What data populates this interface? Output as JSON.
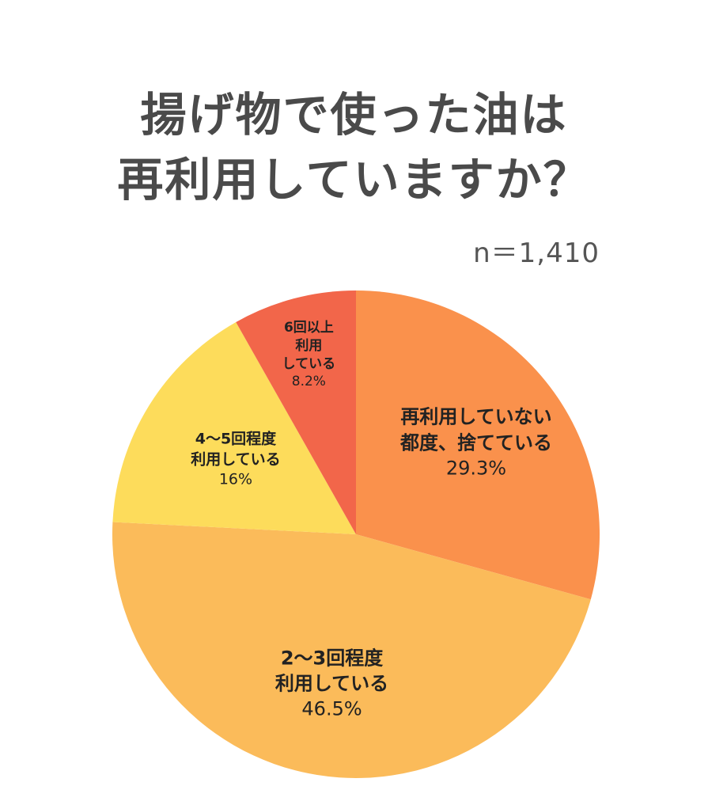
{
  "chart_data": {
    "type": "pie",
    "title_lines": [
      "揚げ物で使った油は",
      "再利用していますか？"
    ],
    "sample_size": "n＝1,410",
    "slices": [
      {
        "label_lines": [
          "再利用していない",
          "都度、捨てている"
        ],
        "value": 29.3,
        "value_label": "29.3%",
        "color": "#fa914c"
      },
      {
        "label_lines": [
          "2～3回程度",
          "利用している"
        ],
        "value": 46.5,
        "value_label": "46.5%",
        "color": "#fbbb5a"
      },
      {
        "label_lines": [
          "4～5回程度",
          "利用している"
        ],
        "value": 16,
        "value_label": "16%",
        "color": "#fddc5b"
      },
      {
        "label_lines": [
          "6回以上",
          "利用",
          "している"
        ],
        "value": 8.2,
        "value_label": "8.2%",
        "color": "#f2664a"
      }
    ],
    "start_angle": "top",
    "direction": "clockwise"
  }
}
